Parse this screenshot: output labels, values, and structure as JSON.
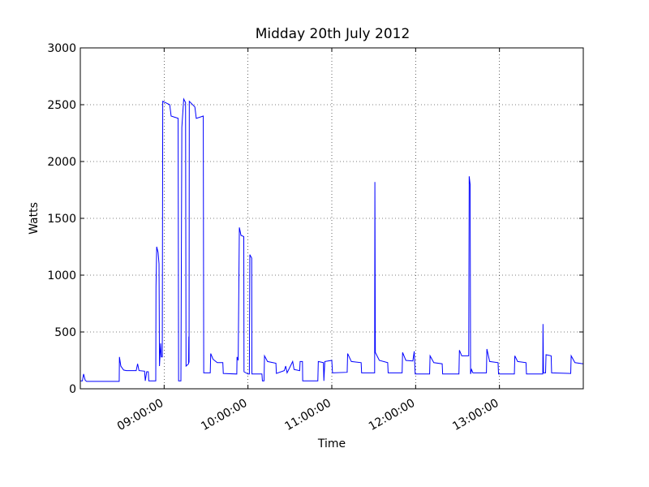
{
  "chart_data": {
    "type": "line",
    "title": "Midday 20th July 2012",
    "x_label": "Time",
    "y_label": "Watts",
    "xlim": [
      "08:00:00",
      "14:00:00"
    ],
    "xticks": [
      "09:00:00",
      "10:00:00",
      "11:00:00",
      "12:00:00",
      "13:00:00"
    ],
    "ylim": [
      0,
      3000
    ],
    "yticks": [
      0,
      500,
      1000,
      1500,
      2000,
      2500,
      3000
    ],
    "grid": true,
    "x": [
      "08:00:00",
      "08:01:30",
      "08:02:20",
      "08:03:30",
      "08:04:30",
      "08:27:50",
      "08:28:00",
      "08:29:00",
      "08:31:00",
      "08:33:00",
      "08:40:00",
      "08:41:00",
      "08:42:00",
      "08:46:00",
      "08:46:30",
      "08:47:30",
      "08:48:40",
      "08:49:00",
      "08:54:00",
      "08:54:10",
      "08:54:40",
      "08:55:40",
      "08:56:20",
      "08:56:40",
      "08:57:30",
      "08:58:00",
      "08:58:40",
      "08:59:00",
      "09:04:00",
      "09:05:00",
      "09:10:00",
      "09:10:20",
      "09:12:00",
      "09:12:40",
      "09:14:00",
      "09:15:20",
      "09:15:40",
      "09:17:30",
      "09:17:40",
      "09:17:50",
      "09:18:00",
      "09:22:00",
      "09:23:00",
      "09:28:00",
      "09:28:20",
      "09:33:00",
      "09:33:20",
      "09:35:00",
      "09:38:00",
      "09:42:00",
      "09:42:20",
      "09:52:00",
      "09:52:10",
      "09:53:00",
      "09:53:50",
      "09:55:00",
      "09:57:00",
      "09:57:10",
      "10:00:00",
      "10:01:00",
      "10:01:20",
      "10:02:40",
      "10:02:50",
      "10:10:00",
      "10:10:20",
      "10:11:30",
      "10:11:50",
      "10:14:00",
      "10:20:00",
      "10:20:20",
      "10:26:00",
      "10:27:00",
      "10:28:00",
      "10:32:00",
      "10:33:00",
      "10:37:00",
      "10:37:20",
      "10:39:00",
      "10:39:10",
      "10:50:00",
      "10:50:20",
      "10:54:00",
      "10:54:20",
      "10:55:00",
      "11:00:00",
      "11:00:30",
      "11:11:00",
      "11:11:20",
      "11:14:00",
      "11:21:00",
      "11:21:20",
      "11:30:40",
      "11:30:50",
      "11:31:10",
      "11:34:00",
      "11:40:00",
      "11:40:20",
      "11:50:20",
      "11:50:40",
      "11:53:00",
      "11:58:00",
      "11:59:00",
      "11:59:40",
      "12:10:00",
      "12:10:20",
      "12:13:00",
      "12:19:00",
      "12:19:20",
      "12:31:00",
      "12:31:20",
      "12:33:00",
      "12:38:00",
      "12:38:20",
      "12:39:00",
      "12:39:20",
      "12:40:00",
      "12:41:00",
      "12:50:40",
      "12:51:00",
      "12:53:00",
      "12:59:00",
      "12:59:20",
      "13:10:40",
      "13:11:00",
      "13:13:00",
      "13:19:00",
      "13:19:20",
      "13:31:00",
      "13:31:10",
      "13:31:30",
      "13:33:00",
      "13:33:20",
      "13:37:00",
      "13:37:20",
      "13:51:00",
      "13:51:20",
      "13:54:00",
      "14:00:00"
    ],
    "series": [
      {
        "color": "#0000ff",
        "values": [
          70,
          70,
          130,
          75,
          65,
          65,
          280,
          200,
          165,
          160,
          160,
          220,
          160,
          155,
          70,
          150,
          150,
          70,
          70,
          900,
          1250,
          1200,
          1100,
          200,
          400,
          280,
          280,
          2530,
          2500,
          2400,
          2380,
          70,
          70,
          2300,
          2550,
          2520,
          200,
          220,
          460,
          230,
          2530,
          2480,
          2380,
          2400,
          140,
          140,
          310,
          260,
          230,
          230,
          135,
          130,
          280,
          250,
          1420,
          1350,
          1340,
          150,
          130,
          130,
          1180,
          1150,
          130,
          130,
          70,
          70,
          290,
          240,
          225,
          135,
          160,
          200,
          140,
          240,
          170,
          160,
          240,
          240,
          70,
          70,
          240,
          230,
          70,
          240,
          250,
          140,
          145,
          310,
          240,
          230,
          140,
          140,
          1820,
          320,
          250,
          230,
          140,
          140,
          320,
          250,
          245,
          330,
          130,
          130,
          290,
          230,
          220,
          130,
          130,
          340,
          290,
          290,
          1870,
          1800,
          130,
          170,
          140,
          140,
          350,
          240,
          230,
          130,
          130,
          290,
          240,
          230,
          130,
          130,
          570,
          140,
          140,
          300,
          290,
          140,
          135,
          290,
          230,
          220
        ]
      }
    ]
  }
}
